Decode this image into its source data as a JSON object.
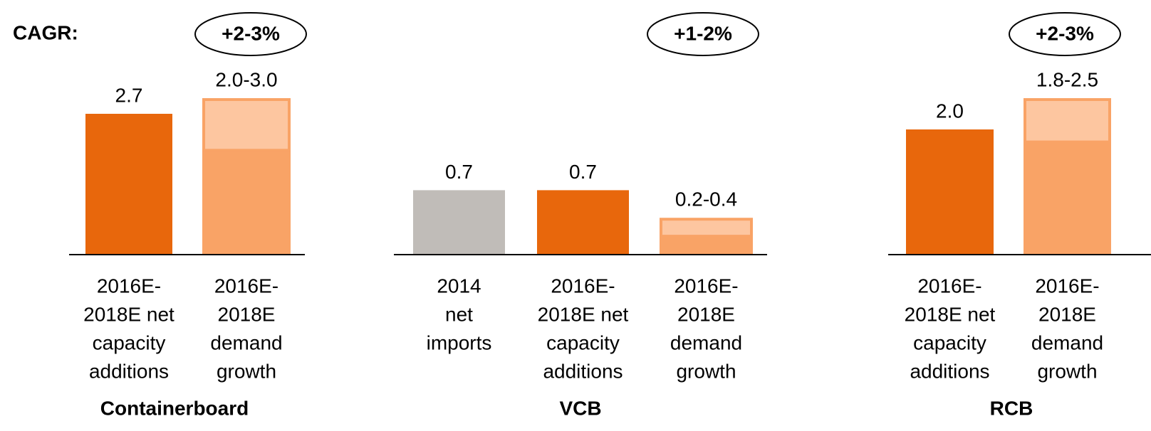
{
  "cagr_label": "CAGR:",
  "chart_data": [
    {
      "type": "bar",
      "title": "Containerboard",
      "cagr": "+2-3%",
      "categories": [
        [
          "2016E-",
          "2018E net",
          "capacity",
          "additions"
        ],
        [
          "2016E-",
          "2018E",
          "demand",
          "growth"
        ]
      ],
      "values": [
        2.7,
        [
          2.0,
          3.0
        ]
      ],
      "value_labels": [
        "2.7",
        "2.0-3.0"
      ],
      "colors": [
        "#E8670C",
        "#F9A366"
      ],
      "range_color": "#FDC6A0",
      "ylim": [
        0,
        3.0
      ]
    },
    {
      "type": "bar",
      "title": "VCB",
      "cagr": "+1-2%",
      "categories": [
        [
          "2014",
          "net",
          "imports"
        ],
        [
          "2016E-",
          "2018E net",
          "capacity",
          "additions"
        ],
        [
          "2016E-",
          "2018E",
          "demand",
          "growth"
        ]
      ],
      "values": [
        0.7,
        0.7,
        [
          0.2,
          0.4
        ]
      ],
      "value_labels": [
        "0.7",
        "0.7",
        "0.2-0.4"
      ],
      "colors": [
        "#C0BCB8",
        "#E8670C",
        "#F9A366"
      ],
      "range_color": "#FDC6A0",
      "ylim": [
        0,
        1.7
      ]
    },
    {
      "type": "bar",
      "title": "RCB",
      "cagr": "+2-3%",
      "categories": [
        [
          "2016E-",
          "2018E net",
          "capacity",
          "additions"
        ],
        [
          "2016E-",
          "2018E",
          "demand",
          "growth"
        ]
      ],
      "values": [
        2.0,
        [
          1.8,
          2.5
        ]
      ],
      "value_labels": [
        "2.0",
        "1.8-2.5"
      ],
      "colors": [
        "#E8670C",
        "#F9A366"
      ],
      "range_color": "#FDC6A0",
      "ylim": [
        0,
        2.5
      ]
    }
  ]
}
